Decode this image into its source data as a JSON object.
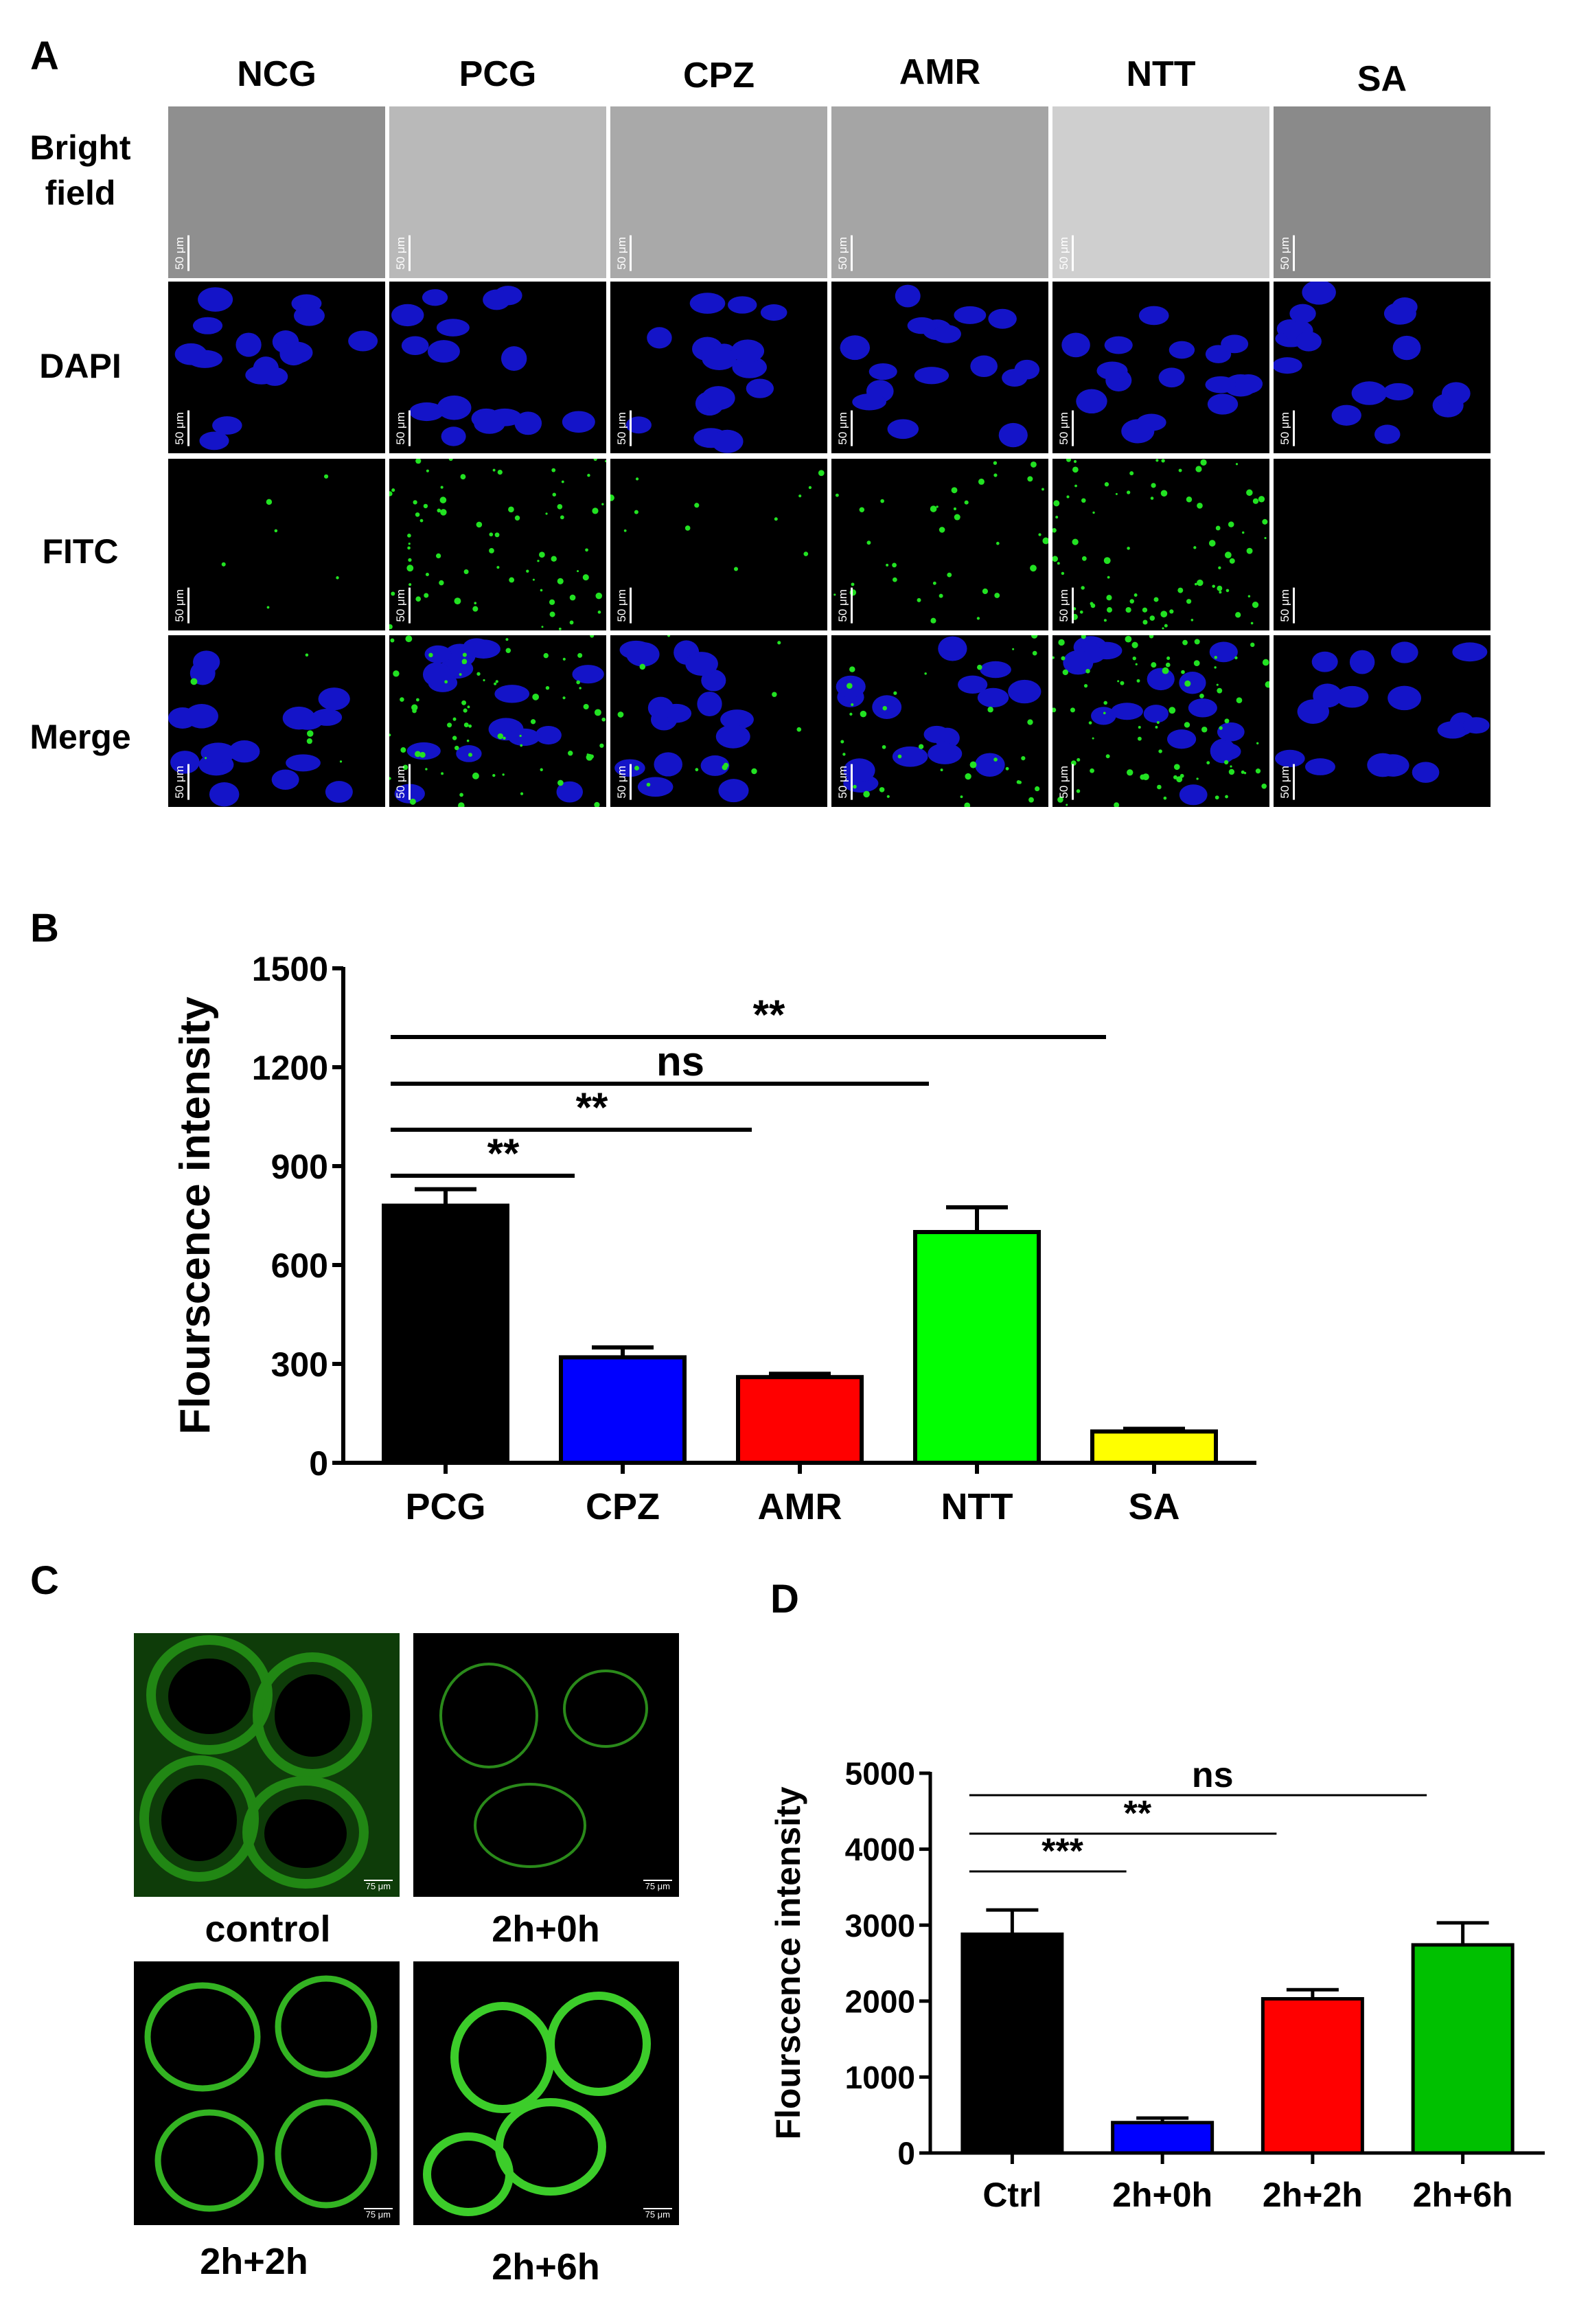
{
  "panelA": {
    "letter": "A",
    "columns": [
      "NCG",
      "PCG",
      "CPZ",
      "AMR",
      "NTT",
      "SA"
    ],
    "rows": [
      "Bright\nfield",
      "DAPI",
      "FITC",
      "Merge"
    ],
    "scale_label": "50 μm"
  },
  "panelB": {
    "letter": "B",
    "significance": [
      "**",
      "ns",
      "**",
      "**"
    ]
  },
  "panelC": {
    "letter": "C",
    "labels": [
      "control",
      "2h+0h",
      "2h+2h",
      "2h+6h"
    ],
    "scale_label": "75 μm"
  },
  "panelD": {
    "letter": "D",
    "significance": [
      "ns",
      "**",
      "***"
    ]
  },
  "chart_data": [
    {
      "type": "bar",
      "panel": "B",
      "categories": [
        "PCG",
        "CPZ",
        "AMR",
        "NTT",
        "SA"
      ],
      "values": [
        780,
        320,
        260,
        700,
        95
      ],
      "errors": [
        50,
        30,
        10,
        75,
        8
      ],
      "colors": [
        "#000000",
        "#0000ff",
        "#ff0000",
        "#00ff00",
        "#ffff00"
      ],
      "title": "",
      "xlabel": "",
      "ylabel": "Flourscence intensity",
      "ylim": [
        0,
        1500
      ],
      "yticks": [
        "0",
        "300",
        "600",
        "900",
        "1200",
        "1500"
      ],
      "comparisons": [
        {
          "from": "PCG",
          "to": "SA",
          "label": "**"
        },
        {
          "from": "PCG",
          "to": "NTT",
          "label": "ns"
        },
        {
          "from": "PCG",
          "to": "AMR",
          "label": "**"
        },
        {
          "from": "PCG",
          "to": "CPZ",
          "label": "**"
        }
      ]
    },
    {
      "type": "bar",
      "panel": "D",
      "categories": [
        "Ctrl",
        "2h+0h",
        "2h+2h",
        "2h+6h"
      ],
      "values": [
        2880,
        400,
        2030,
        2740
      ],
      "errors": [
        320,
        60,
        120,
        290
      ],
      "colors": [
        "#000000",
        "#0000ff",
        "#ff0000",
        "#00c000"
      ],
      "title": "",
      "xlabel": "",
      "ylabel": "Flourscence  intensity",
      "ylim": [
        0,
        5000
      ],
      "yticks": [
        "0",
        "1000",
        "2000",
        "3000",
        "4000",
        "5000"
      ],
      "comparisons": [
        {
          "from": "Ctrl",
          "to": "2h+6h",
          "label": "ns"
        },
        {
          "from": "Ctrl",
          "to": "2h+2h",
          "label": "**"
        },
        {
          "from": "Ctrl",
          "to": "2h+0h",
          "label": "***"
        }
      ]
    }
  ]
}
